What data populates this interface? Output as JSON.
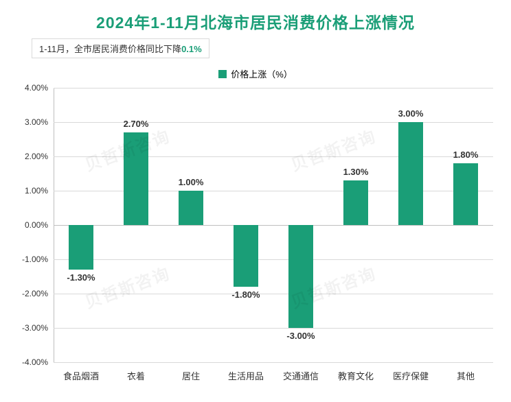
{
  "chart": {
    "type": "bar",
    "title": "2024年1-11月北海市居民消费价格上涨情况",
    "title_color": "#1a9e77",
    "title_fontsize": 23,
    "subtitle_prefix": "1-11月，全市居民消费价格同比下降",
    "subtitle_highlight": "0.1%",
    "subtitle_highlight_color": "#1a9e77",
    "legend_label": "价格上涨（%）",
    "legend_swatch_color": "#1a9e77",
    "categories": [
      "食品烟酒",
      "衣着",
      "居住",
      "生活用品",
      "交通通信",
      "教育文化",
      "医疗保健",
      "其他"
    ],
    "values": [
      -1.3,
      2.7,
      1.0,
      -1.8,
      -3.0,
      1.3,
      3.0,
      1.8
    ],
    "value_labels": [
      "-1.30%",
      "2.70%",
      "1.00%",
      "-1.80%",
      "-3.00%",
      "1.30%",
      "3.00%",
      "1.80%"
    ],
    "bar_color": "#1a9e77",
    "bar_width_ratio": 0.45,
    "ylim_min": -4.0,
    "ylim_max": 4.0,
    "ytick_step": 1.0,
    "ytick_labels": [
      "-4.00%",
      "-3.00%",
      "-2.00%",
      "-1.00%",
      "0.00%",
      "1.00%",
      "2.00%",
      "3.00%",
      "4.00%"
    ],
    "grid_color": "#d9d9d9",
    "axis_color": "#bfbfbf",
    "background_color": "#ffffff",
    "label_fontsize": 13,
    "watermark_text": "贝哲斯咨询",
    "watermark_color": "rgba(0,0,0,0.05)"
  }
}
